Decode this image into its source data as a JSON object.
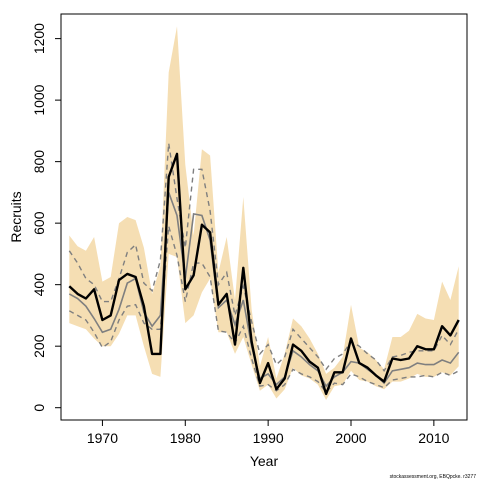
{
  "chart_data": {
    "type": "line",
    "xlabel": "Year",
    "ylabel": "Recruits",
    "xlim": [
      1965,
      2014
    ],
    "ylim": [
      -40,
      1280
    ],
    "x_ticks": [
      1970,
      1980,
      1990,
      2000,
      2010
    ],
    "y_ticks": [
      0,
      200,
      400,
      600,
      800,
      1000,
      1200
    ],
    "grid": false,
    "credit": "stockassessment.org, EBQpcke. r3277",
    "colors": {
      "band": "#f5deb3",
      "estimate": "#000000",
      "median": "#7f7f7f",
      "interval": "#7f7f7f"
    },
    "x": [
      1966,
      1967,
      1968,
      1969,
      1970,
      1971,
      1972,
      1973,
      1974,
      1975,
      1976,
      1977,
      1978,
      1979,
      1980,
      1981,
      1982,
      1983,
      1984,
      1985,
      1986,
      1987,
      1988,
      1989,
      1990,
      1991,
      1992,
      1993,
      1994,
      1995,
      1996,
      1997,
      1998,
      1999,
      2000,
      2001,
      2002,
      2003,
      2004,
      2005,
      2006,
      2007,
      2008,
      2009,
      2010,
      2011,
      2012,
      2013
    ],
    "series": [
      {
        "role": "band-upper",
        "values": [
          560,
          525,
          510,
          555,
          410,
          425,
          600,
          620,
          610,
          520,
          370,
          460,
          1090,
          1240,
          790,
          560,
          840,
          820,
          440,
          555,
          350,
          685,
          320,
          135,
          230,
          95,
          175,
          290,
          265,
          225,
          175,
          110,
          130,
          165,
          335,
          195,
          180,
          155,
          125,
          230,
          230,
          250,
          305,
          290,
          285,
          410,
          350,
          460
        ]
      },
      {
        "role": "band-lower",
        "values": [
          275,
          265,
          255,
          225,
          200,
          200,
          240,
          300,
          300,
          200,
          110,
          100,
          500,
          490,
          275,
          300,
          375,
          420,
          245,
          245,
          175,
          230,
          140,
          55,
          75,
          30,
          60,
          130,
          105,
          95,
          75,
          25,
          70,
          75,
          120,
          90,
          85,
          70,
          60,
          85,
          85,
          95,
          110,
          100,
          100,
          115,
          105,
          135
        ]
      },
      {
        "role": "estimate",
        "values": [
          395,
          370,
          355,
          385,
          285,
          300,
          415,
          435,
          425,
          330,
          175,
          175,
          750,
          825,
          385,
          430,
          595,
          570,
          335,
          370,
          205,
          455,
          215,
          80,
          145,
          60,
          95,
          205,
          185,
          150,
          130,
          45,
          115,
          115,
          225,
          145,
          130,
          105,
          85,
          160,
          155,
          160,
          200,
          190,
          190,
          265,
          235,
          285
        ]
      },
      {
        "role": "median",
        "values": [
          370,
          355,
          330,
          290,
          245,
          255,
          320,
          405,
          420,
          310,
          265,
          300,
          700,
          625,
          420,
          630,
          625,
          545,
          325,
          350,
          270,
          350,
          200,
          95,
          110,
          75,
          100,
          185,
          165,
          140,
          120,
          70,
          100,
          115,
          150,
          145,
          125,
          105,
          80,
          120,
          125,
          130,
          145,
          140,
          140,
          155,
          145,
          180
        ]
      },
      {
        "role": "interval-upper",
        "values": [
          510,
          470,
          420,
          400,
          345,
          345,
          420,
          505,
          530,
          405,
          380,
          480,
          860,
          680,
          520,
          775,
          775,
          640,
          400,
          440,
          300,
          395,
          280,
          175,
          205,
          140,
          165,
          255,
          225,
          195,
          165,
          125,
          160,
          175,
          215,
          200,
          175,
          155,
          120,
          165,
          170,
          180,
          185,
          185,
          185,
          235,
          205,
          255
        ]
      },
      {
        "role": "interval-lower",
        "values": [
          315,
          300,
          285,
          245,
          195,
          215,
          285,
          330,
          335,
          275,
          255,
          255,
          590,
          495,
          345,
          470,
          470,
          425,
          250,
          245,
          210,
          265,
          160,
          70,
          75,
          55,
          75,
          125,
          110,
          100,
          85,
          50,
          80,
          75,
          110,
          100,
          85,
          75,
          65,
          90,
          95,
          100,
          100,
          105,
          100,
          115,
          105,
          120
        ]
      }
    ]
  }
}
